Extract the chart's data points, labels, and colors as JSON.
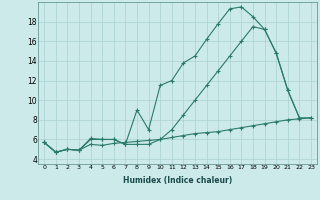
{
  "xlabel": "Humidex (Indice chaleur)",
  "bg_color": "#cceaea",
  "line_color": "#2a7a6a",
  "grid_color": "#aacfcf",
  "xlim": [
    -0.5,
    23.5
  ],
  "ylim": [
    3.5,
    20.0
  ],
  "yticks": [
    4,
    6,
    8,
    10,
    12,
    14,
    16,
    18
  ],
  "xticks": [
    0,
    1,
    2,
    3,
    4,
    5,
    6,
    7,
    8,
    9,
    10,
    11,
    12,
    13,
    14,
    15,
    16,
    17,
    18,
    19,
    20,
    21,
    22,
    23
  ],
  "line1_x": [
    0,
    1,
    2,
    3,
    4,
    5,
    6,
    7,
    8,
    9,
    10,
    11,
    12,
    13,
    14,
    15,
    16,
    17,
    18,
    19,
    20,
    21,
    22
  ],
  "line1_y": [
    5.7,
    4.7,
    5.0,
    4.9,
    6.1,
    6.0,
    6.0,
    5.5,
    9.0,
    7.0,
    11.5,
    12.0,
    13.8,
    14.5,
    16.2,
    17.8,
    19.3,
    19.5,
    18.5,
    17.2,
    14.8,
    11.0,
    8.2
  ],
  "line2_x": [
    0,
    1,
    2,
    3,
    4,
    5,
    6,
    7,
    8,
    9,
    10,
    11,
    12,
    13,
    14,
    15,
    16,
    17,
    18,
    19,
    20,
    21,
    22,
    23
  ],
  "line2_y": [
    5.7,
    4.7,
    5.0,
    4.9,
    6.0,
    6.0,
    6.0,
    5.5,
    5.5,
    5.5,
    6.0,
    7.0,
    8.5,
    10.0,
    11.5,
    13.0,
    14.5,
    16.0,
    17.5,
    17.2,
    14.8,
    11.0,
    8.2,
    8.2
  ],
  "line3_x": [
    0,
    1,
    2,
    3,
    4,
    5,
    6,
    7,
    8,
    9,
    10,
    11,
    12,
    13,
    14,
    15,
    16,
    17,
    18,
    19,
    20,
    21,
    22,
    23
  ],
  "line3_y": [
    5.7,
    4.7,
    5.0,
    4.9,
    5.5,
    5.4,
    5.6,
    5.7,
    5.8,
    5.9,
    6.0,
    6.2,
    6.4,
    6.6,
    6.7,
    6.8,
    7.0,
    7.2,
    7.4,
    7.6,
    7.8,
    8.0,
    8.1,
    8.2
  ]
}
